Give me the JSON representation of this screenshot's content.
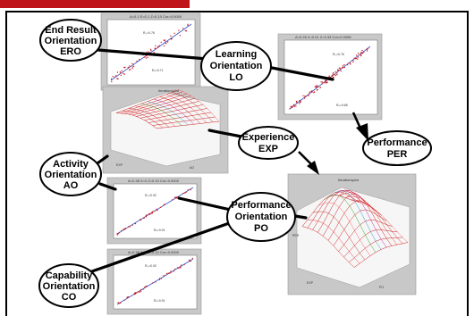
{
  "nodes": {
    "ero": {
      "line1": "End Result",
      "line2": "Orientation",
      "line3": "ERO"
    },
    "lo": {
      "line1": "Learning",
      "line2": "Orientation",
      "line3": "LO"
    },
    "ao": {
      "line1": "Activity",
      "line2": "Orientation",
      "line3": "AO"
    },
    "co": {
      "line1": "Capability",
      "line2": "Orientation",
      "line3": "CO"
    },
    "exp": {
      "line1": "Experience",
      "line2": "EXP"
    },
    "po": {
      "line1": "Performance",
      "line2": "Orientation",
      "line3": "PO"
    },
    "per": {
      "line1": "Performance",
      "line2": "PER"
    }
  },
  "plots": {
    "top_left": {
      "title": "A=0.1 E=0.1 Z=0.10 Cor=0.0000",
      "r1": "R₀=0.76",
      "r2": "Rₓ=0.71"
    },
    "top_right": {
      "title": "A=0.26 X=0.01 Z=0.33 Cor=0.0098",
      "r1": "R₀=0.76",
      "r2": "Rₓ=0.68"
    },
    "surface_left": {
      "title": "Iterationsplot",
      "xaxis": "EXP",
      "yaxis": "AO"
    },
    "mid": {
      "title": "A=0.38 X=0 Z=0.10 Cor=0.0000",
      "r1": "R₀=0.92",
      "r2": "Rₓ=0.91"
    },
    "bottom": {
      "title": "A=0.38 X=0 Z=0.10 Cor=0.0000",
      "r1": "R₀=0.92",
      "r2": "Rₓ=0.91"
    },
    "surface_right": {
      "title": "Iterationsplot",
      "xaxis": "PO",
      "yaxis": "EXP",
      "zaxis": "PER"
    }
  }
}
